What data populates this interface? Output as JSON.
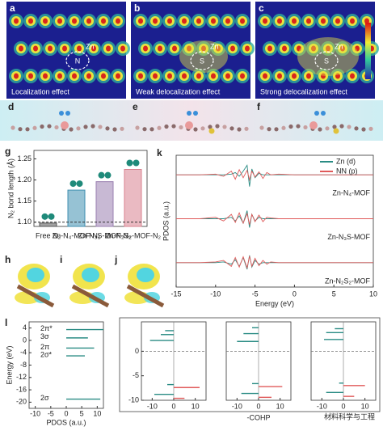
{
  "top_panels": [
    {
      "letter": "a",
      "caption": "Localization effect",
      "metal": "Zn",
      "atom": "N"
    },
    {
      "letter": "b",
      "caption": "Weak delocalization effect",
      "metal": "Zn",
      "atom": "S"
    },
    {
      "letter": "c",
      "caption": "Strong delocalization effect",
      "metal": "Zn",
      "atom": "S"
    }
  ],
  "structure_letters": [
    "d",
    "e",
    "f"
  ],
  "charge_letters": [
    "h",
    "i",
    "j"
  ],
  "watermark": "材料科学与工程",
  "chart_data": [
    {
      "type": "bar",
      "panel": "g",
      "ylabel": "N₂ bond length (Å)",
      "categories": [
        "Free N₂",
        "Zn-N₄-MOF-N₂",
        "Zn-N₃S-MOF-N₂",
        "Zn-N₂S₂-MOF-N₂"
      ],
      "values": [
        1.098,
        1.176,
        1.196,
        1.225
      ],
      "colors": [
        "#555555",
        "#3f8fb0",
        "#9a7fb0",
        "#d9818f"
      ],
      "reference": 1.1,
      "ylim": [
        1.09,
        1.27
      ],
      "yticks": [
        {
          "value": 1.1,
          "label": "1.10"
        },
        {
          "value": 1.15,
          "label": "1.15"
        },
        {
          "value": 1.2,
          "label": "1.20"
        },
        {
          "value": 1.25,
          "label": "1.25"
        }
      ]
    },
    {
      "type": "line",
      "panel": "k",
      "xlabel": "Energy (eV)",
      "ylabel": "PDOS (a.u.)",
      "xlim": [
        -15,
        10
      ],
      "xticks": [
        -15,
        -10,
        -5,
        0,
        5,
        10
      ],
      "ylim": [
        -2,
        2
      ],
      "x": [
        -15,
        -12,
        -10,
        -9,
        -8,
        -7.5,
        -7,
        -6.5,
        -6,
        -5.7,
        -5.4,
        -5,
        -4.5,
        -4,
        -3.5,
        -3,
        -2,
        0,
        3,
        6,
        10
      ],
      "subplots": [
        {
          "label": "Zn-N₄-MOF",
          "series": [
            {
              "name": "Zn (d)",
              "color": "#2a8c84",
              "values": [
                0,
                0,
                0,
                0,
                0.1,
                0.3,
                -0.2,
                0.5,
                1.3,
                -1.6,
                0.8,
                -0.4,
                0.2,
                0,
                0,
                0,
                0,
                0,
                0,
                0,
                0
              ]
            },
            {
              "name": "NN (p)",
              "color": "#e05a5a",
              "values": [
                0,
                0,
                0.1,
                -0.2,
                0.5,
                -0.6,
                0.7,
                -0.4,
                0.6,
                -0.7,
                0.5,
                -0.3,
                0.4,
                -0.5,
                0.3,
                0,
                0.1,
                0,
                0,
                0,
                0
              ]
            }
          ]
        },
        {
          "label": "Zn-N₃S-MOF",
          "series": [
            {
              "name": "Zn (d)",
              "color": "#2a8c84",
              "values": [
                0,
                0,
                0,
                0,
                0.2,
                -0.3,
                0.4,
                -0.6,
                1.1,
                -1.2,
                0.6,
                -0.3,
                0.2,
                0,
                0,
                0,
                0,
                0,
                0,
                0,
                0
              ]
            },
            {
              "name": "NN (p)",
              "color": "#e05a5a",
              "values": [
                0,
                0,
                0.2,
                -0.3,
                0.6,
                -0.5,
                0.8,
                -0.6,
                0.7,
                -0.8,
                0.6,
                -0.4,
                0.5,
                -0.4,
                0.2,
                0.1,
                0,
                0,
                0,
                0,
                0
              ]
            }
          ]
        },
        {
          "label": "Zn-N₂S₂-MOF",
          "series": [
            {
              "name": "Zn (d)",
              "color": "#2a8c84",
              "values": [
                0,
                0,
                0,
                0.1,
                -0.2,
                0.4,
                -0.5,
                0.7,
                -0.9,
                1.0,
                -0.6,
                0.3,
                -0.2,
                0,
                0,
                0,
                0,
                0,
                0,
                0,
                0
              ]
            },
            {
              "name": "NN (p)",
              "color": "#e05a5a",
              "values": [
                0,
                0,
                0.1,
                0.3,
                -0.5,
                0.7,
                -0.6,
                0.8,
                -0.7,
                0.9,
                -0.5,
                0.6,
                -0.4,
                0.3,
                -0.2,
                0.1,
                0,
                0,
                0,
                0,
                0
              ]
            }
          ]
        }
      ]
    },
    {
      "type": "spike",
      "panel": "l",
      "xlabel": "PDOS (a.u.)",
      "ylabel": "Energy (eV)",
      "color": "#2a8c84",
      "xlim": [
        -12,
        12
      ],
      "xticks": [
        -10,
        -5,
        0,
        5,
        10
      ],
      "ylim": [
        -22,
        6
      ],
      "yticks": [
        4,
        0,
        -4,
        -8,
        -12,
        -16,
        -20
      ],
      "levels": [
        {
          "label": "2π*",
          "energy": 3.5,
          "value": 12
        },
        {
          "label": "3σ",
          "energy": 0.8,
          "value": 7
        },
        {
          "label": "2π",
          "energy": -2.5,
          "value": 9
        },
        {
          "label": "2σ*",
          "energy": -5,
          "value": 6
        },
        {
          "label": "2σ",
          "energy": -19,
          "value": 11
        }
      ]
    },
    {
      "type": "cohp",
      "xlabel": "-COHP",
      "xlim": [
        -15,
        15
      ],
      "xticks": [
        -10,
        0,
        10
      ],
      "ylim": [
        -10,
        6
      ],
      "yticks": [
        0,
        -5,
        -10
      ],
      "subplots": [
        {
          "series": [
            {
              "color": "#2a8c84",
              "energies": [
                4.2,
                3.4,
                2.2,
                -6.8,
                -8.8
              ],
              "values": [
                -4,
                -6,
                -11,
                -3,
                -9
              ]
            },
            {
              "color": "#e05a5a",
              "energies": [
                -7.4,
                -9.6
              ],
              "values": [
                12,
                5
              ]
            }
          ]
        },
        {
          "series": [
            {
              "color": "#2a8c84",
              "energies": [
                4.8,
                3.6,
                2.0,
                -6.6,
                -8.6
              ],
              "values": [
                -3,
                -7,
                -10,
                -3,
                -8
              ]
            },
            {
              "color": "#e05a5a",
              "energies": [
                -7.2,
                -9.4
              ],
              "values": [
                11,
                6
              ]
            }
          ]
        },
        {
          "series": [
            {
              "color": "#2a8c84",
              "energies": [
                4.6,
                3.8,
                2.4,
                -6.5,
                -8.4
              ],
              "values": [
                -4,
                -8,
                -9,
                -2,
                -8
              ]
            },
            {
              "color": "#e05a5a",
              "energies": [
                -7.0,
                -9.2
              ],
              "values": [
                10,
                5
              ]
            }
          ]
        }
      ]
    }
  ]
}
